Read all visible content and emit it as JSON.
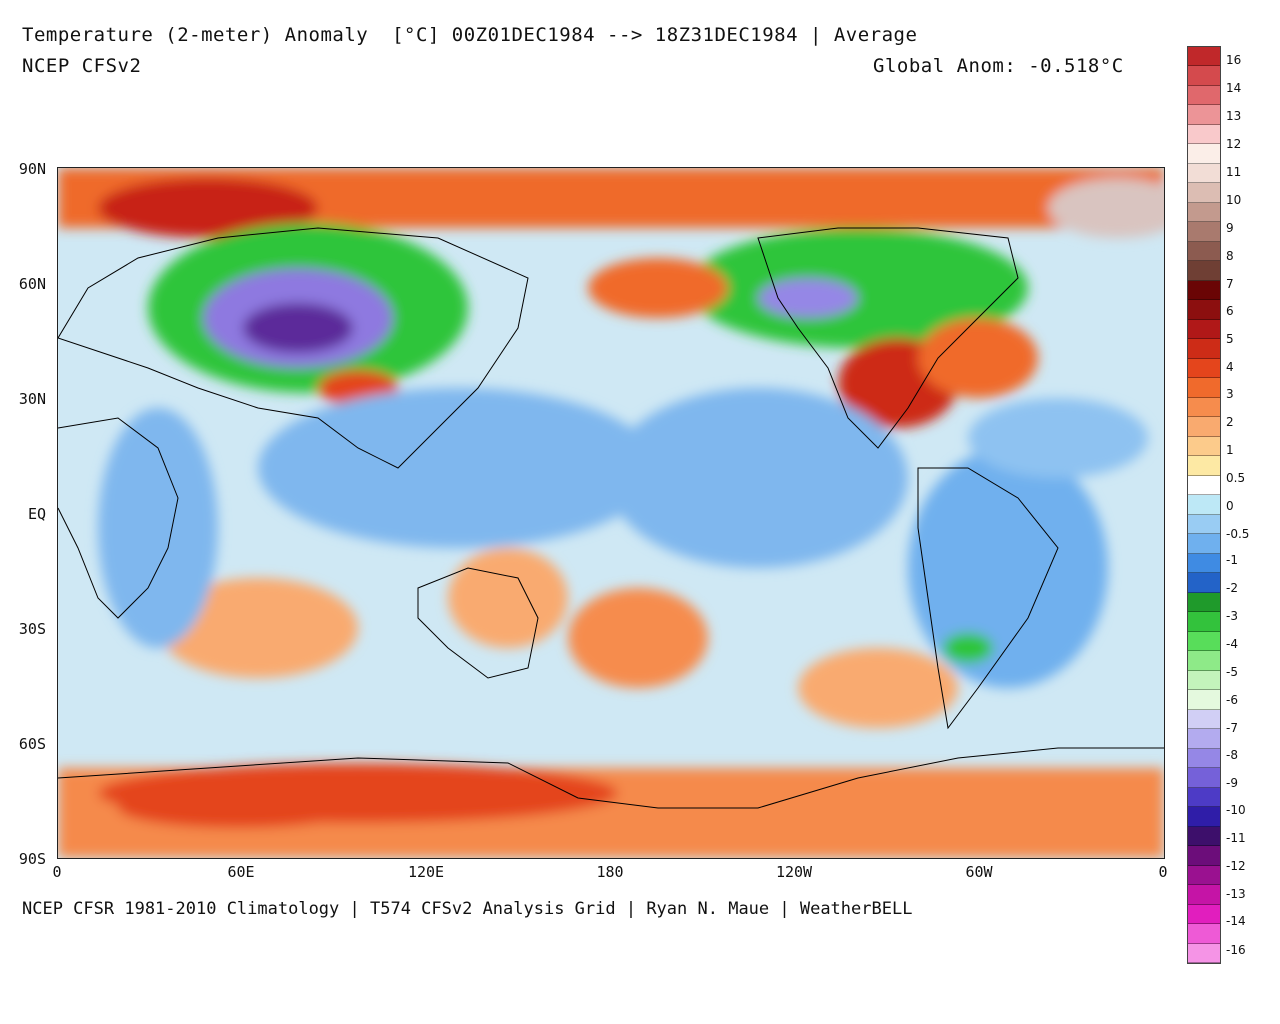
{
  "header": {
    "title": "Temperature (2-meter) Anomaly  [°C] 00Z01DEC1984 --> 18Z31DEC1984 | Average",
    "model": "NCEP CFSv2",
    "global_anom": "Global Anom: -0.518°C"
  },
  "footer": "NCEP CFSR 1981-2010 Climatology | T574 CFSv2 Analysis Grid | Ryan N. Maue | WeatherBELL",
  "axes": {
    "lat_labels": [
      "90N",
      "60N",
      "30N",
      "EQ",
      "30S",
      "60S",
      "90S"
    ],
    "lon_labels": [
      "0",
      "60E",
      "120E",
      "180",
      "120W",
      "60W",
      "0"
    ]
  },
  "colorbar": {
    "labels": [
      "16",
      "14",
      "13",
      "12",
      "11",
      "10",
      "9",
      "8",
      "7",
      "6",
      "5",
      "4",
      "3",
      "2",
      "1",
      "0.5",
      "0",
      "-0.5",
      "-1",
      "-2",
      "-3",
      "-4",
      "-5",
      "-6",
      "-7",
      "-8",
      "-9",
      "-10",
      "-11",
      "-12",
      "-13",
      "-14",
      "-16"
    ],
    "colors": [
      "#c0282a",
      "#d44a4d",
      "#e0686c",
      "#ec9497",
      "#f9c9cb",
      "#fbeee8",
      "#f2ddd6",
      "#dcbdb3",
      "#c39a8e",
      "#a97a6e",
      "#8c5b50",
      "#6f3f34",
      "#6a0505",
      "#8c0f0f",
      "#b01818",
      "#cd2c17",
      "#e4451c",
      "#f06a2c",
      "#f68c4d",
      "#f9aa6f",
      "#fccb8b",
      "#fde9a4",
      "#ffffff",
      "#bde8f6",
      "#99ccf3",
      "#6fb0ee",
      "#3f8be3",
      "#2363c8",
      "#1f9a2b",
      "#33c23c",
      "#58dd5a",
      "#8eea88",
      "#c3f3bb",
      "#e4f9de",
      "#d1cff5",
      "#b3abef",
      "#9587e6",
      "#7561d9",
      "#4d3bc6",
      "#2f1da8",
      "#3d0f6b",
      "#6c0d7a",
      "#9a1190",
      "#c514a6",
      "#e11ebe",
      "#ee5ad6",
      "#f594e6"
    ]
  }
}
